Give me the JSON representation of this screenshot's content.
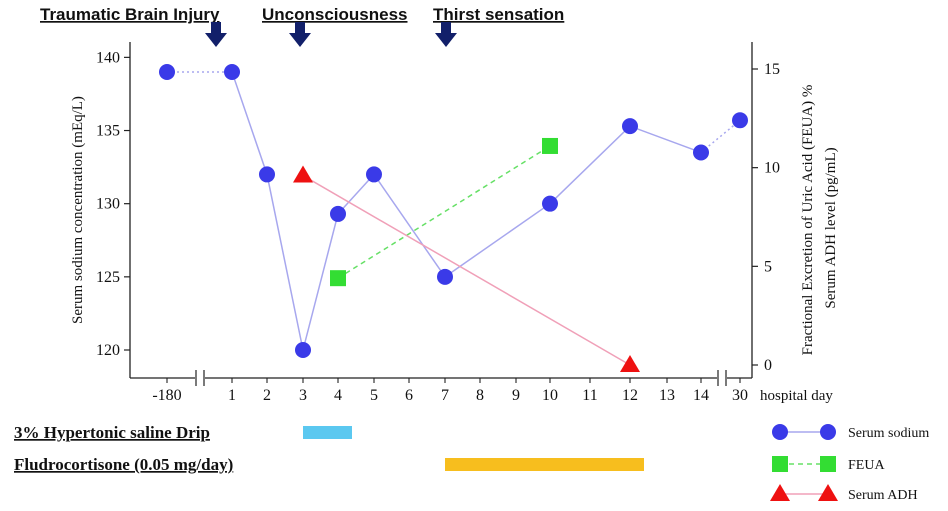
{
  "chart_data": {
    "type": "line",
    "x_categories": [
      "-180",
      "1",
      "2",
      "3",
      "4",
      "5",
      "6",
      "7",
      "8",
      "9",
      "10",
      "11",
      "12",
      "13",
      "14",
      "30"
    ],
    "xlabel": "hospital day",
    "ylabel_left": "Serum sodium concentration (mEq/L)",
    "ylabel_right_1": "Fractional Excretion of Uric Acid (FEUA) %",
    "ylabel_right_2": "Serum ADH level (pg/mL)",
    "ylim_left": [
      118,
      140
    ],
    "yticks_left": [
      120,
      125,
      130,
      135,
      140
    ],
    "ylim_right": [
      0,
      15
    ],
    "yticks_right": [
      0,
      5,
      10,
      15
    ],
    "series": [
      {
        "name": "Serum sodium",
        "axis": "left",
        "color": "#3a3ae8",
        "line_color": "#a7a7ee",
        "marker": "circle",
        "points": [
          {
            "x": "-180",
            "y": 139.0
          },
          {
            "x": "1",
            "y": 139.0
          },
          {
            "x": "2",
            "y": 132.0
          },
          {
            "x": "3",
            "y": 120.0
          },
          {
            "x": "4",
            "y": 129.3
          },
          {
            "x": "5",
            "y": 132.0
          },
          {
            "x": "7",
            "y": 125.0
          },
          {
            "x": "10",
            "y": 130.0
          },
          {
            "x": "12",
            "y": 135.3
          },
          {
            "x": "14",
            "y": 133.5
          },
          {
            "x": "30",
            "y": 135.7
          }
        ],
        "dotted_segments": [
          [
            0,
            1
          ],
          [
            9,
            10
          ]
        ]
      },
      {
        "name": "FEUA",
        "axis": "right",
        "color": "#33dd33",
        "line_color": "#66e066",
        "marker": "square",
        "dashed": true,
        "points": [
          {
            "x": "4",
            "y": 4.4
          },
          {
            "x": "10",
            "y": 11.1
          }
        ]
      },
      {
        "name": "Serum ADH",
        "axis": "right",
        "color": "#ee1111",
        "line_color": "#f0a0b8",
        "marker": "triangle",
        "points": [
          {
            "x": "3",
            "y": 9.6
          },
          {
            "x": "12",
            "y": 0.0
          }
        ]
      }
    ],
    "events": [
      {
        "label": "Traumatic Brain Injury",
        "x": "1"
      },
      {
        "label": "Unconsciousness",
        "x": "3"
      },
      {
        "label": "Thirst sensation",
        "x": "7"
      }
    ],
    "treatments": [
      {
        "label": "3% Hypertonic saline Drip",
        "start": "3",
        "end": "4",
        "color": "#5bc8f0"
      },
      {
        "label": "Fludrocortisone (0.05 mg/day)",
        "start": "7",
        "end": "12",
        "color": "#f7be1e"
      }
    ],
    "legend_position": "bottom-right",
    "grid": false
  }
}
